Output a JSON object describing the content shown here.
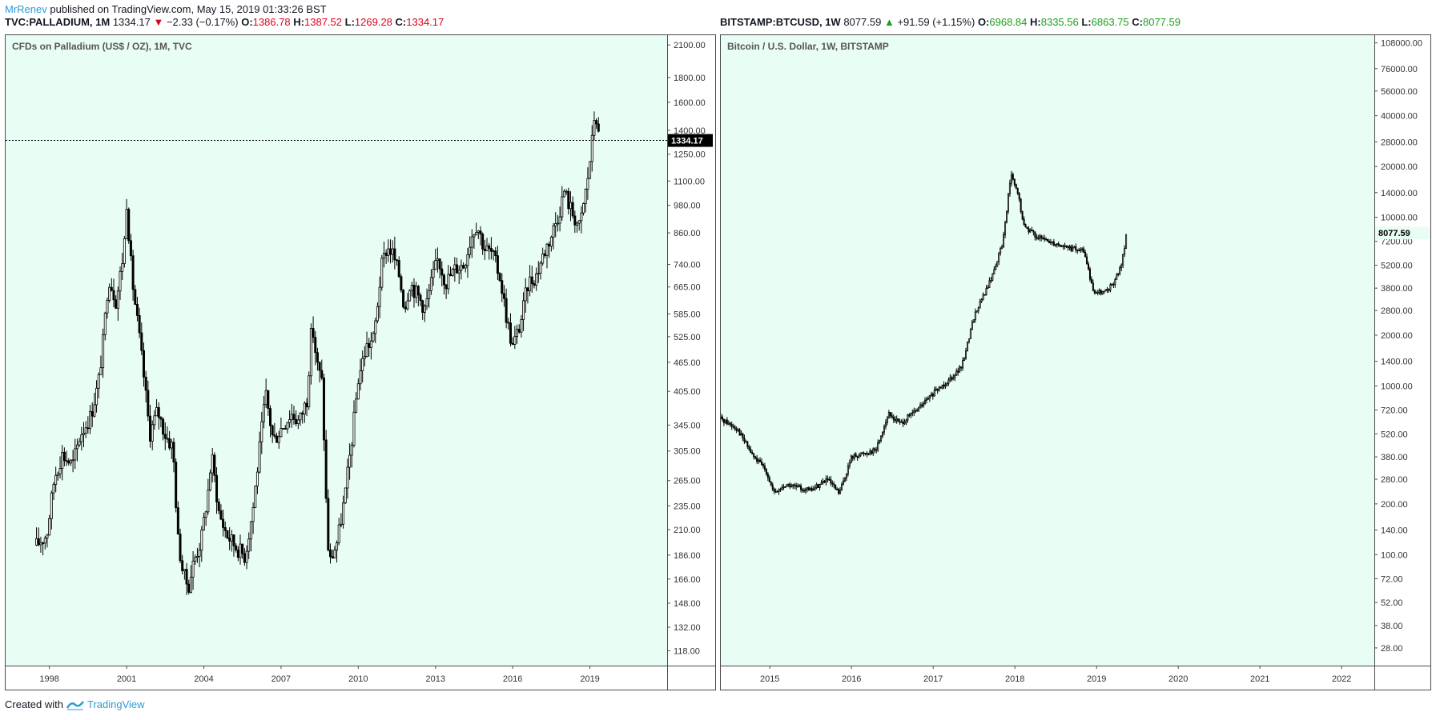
{
  "header": {
    "author": "MrRenev",
    "published": "published on TradingView.com, May 15, 2019 01:33:26 BST"
  },
  "left": {
    "symbol": "TVC:PALLADIUM, 1M",
    "price": "1334.17",
    "change_icon": "triangle-down-icon",
    "change": "−2.33 (−0.17%)",
    "o_label": "O:",
    "o": "1386.78",
    "h_label": "H:",
    "h": "1387.52",
    "l_label": "L:",
    "l": "1269.28",
    "c_label": "C:",
    "c": "1334.17",
    "title": "CFDs on Palladium (US$ / OZ), 1M, TVC",
    "last_price_label": "1334.17"
  },
  "right": {
    "symbol": "BITSTAMP:BTCUSD, 1W",
    "price": "8077.59",
    "change_icon": "triangle-up-icon",
    "change": "+91.59 (+1.15%)",
    "o_label": "O:",
    "o": "6968.84",
    "h_label": "H:",
    "h": "8335.56",
    "l_label": "L:",
    "l": "6863.75",
    "c_label": "C:",
    "c": "8077.59",
    "title": "Bitcoin / U.S. Dollar, 1W, BITSTAMP",
    "last_price_label": "8077.59"
  },
  "footer": {
    "created": "Created with",
    "brand": "TradingView"
  },
  "colors": {
    "plot_bg": "#e8fdf3",
    "candle": "#000000",
    "up_text": "#1aa01a",
    "down_text": "#e0001b",
    "brand": "#2a9bd6"
  },
  "chart_data": [
    {
      "type": "candlestick",
      "title": "CFDs on Palladium (US$ / OZ), 1M, TVC",
      "y_scale": "log",
      "ylim": [
        110,
        2200
      ],
      "xlim": [
        1996.3,
        2022.0
      ],
      "y_ticks": [
        2100,
        1800,
        1600,
        1400,
        1250,
        1100,
        980,
        860,
        740,
        665,
        585,
        525,
        465,
        405,
        345,
        305,
        265,
        235,
        210,
        186,
        166,
        148,
        132,
        118
      ],
      "y_tick_labels": [
        "2100.00",
        "1800.00",
        "1600.00",
        "1400.00",
        "1250.00",
        "1100.00",
        "980.00",
        "860.00",
        "740.00",
        "665.00",
        "585.00",
        "525.00",
        "465.00",
        "405.00",
        "345.00",
        "305.00",
        "265.00",
        "235.00",
        "210.00",
        "186.00",
        "166.00",
        "148.00",
        "132.00",
        "118.00"
      ],
      "x_ticks": [
        1998,
        2001,
        2004,
        2007,
        2010,
        2013,
        2016,
        2019
      ],
      "x_tick_labels": [
        "1998",
        "2001",
        "2004",
        "2007",
        "2010",
        "2013",
        "2016",
        "2019"
      ],
      "last_price": 1334.17,
      "price_path": [
        [
          1997.5,
          195
        ],
        [
          1997.9,
          205
        ],
        [
          1998.2,
          270
        ],
        [
          1998.5,
          300
        ],
        [
          1998.9,
          285
        ],
        [
          1999.2,
          330
        ],
        [
          1999.6,
          360
        ],
        [
          1999.9,
          420
        ],
        [
          2000.1,
          520
        ],
        [
          2000.3,
          700
        ],
        [
          2000.6,
          620
        ],
        [
          2000.9,
          800
        ],
        [
          2001.0,
          1000
        ],
        [
          2001.2,
          700
        ],
        [
          2001.5,
          520
        ],
        [
          2001.7,
          420
        ],
        [
          2001.9,
          330
        ],
        [
          2002.2,
          370
        ],
        [
          2002.5,
          330
        ],
        [
          2002.8,
          310
        ],
        [
          2003.0,
          200
        ],
        [
          2003.2,
          170
        ],
        [
          2003.4,
          160
        ],
        [
          2003.6,
          180
        ],
        [
          2003.9,
          200
        ],
        [
          2004.2,
          260
        ],
        [
          2004.3,
          300
        ],
        [
          2004.6,
          225
        ],
        [
          2004.9,
          205
        ],
        [
          2005.2,
          195
        ],
        [
          2005.6,
          185
        ],
        [
          2005.9,
          230
        ],
        [
          2006.2,
          320
        ],
        [
          2006.4,
          400
        ],
        [
          2006.7,
          320
        ],
        [
          2007.0,
          340
        ],
        [
          2007.4,
          365
        ],
        [
          2007.7,
          350
        ],
        [
          2008.0,
          390
        ],
        [
          2008.2,
          560
        ],
        [
          2008.4,
          460
        ],
        [
          2008.6,
          420
        ],
        [
          2008.8,
          200
        ],
        [
          2008.9,
          180
        ],
        [
          2009.2,
          200
        ],
        [
          2009.5,
          250
        ],
        [
          2009.8,
          340
        ],
        [
          2010.0,
          430
        ],
        [
          2010.3,
          500
        ],
        [
          2010.6,
          520
        ],
        [
          2010.9,
          730
        ],
        [
          2011.1,
          800
        ],
        [
          2011.3,
          790
        ],
        [
          2011.6,
          700
        ],
        [
          2011.8,
          600
        ],
        [
          2012.0,
          680
        ],
        [
          2012.3,
          640
        ],
        [
          2012.6,
          600
        ],
        [
          2012.9,
          700
        ],
        [
          2013.1,
          760
        ],
        [
          2013.4,
          680
        ],
        [
          2013.8,
          730
        ],
        [
          2014.1,
          740
        ],
        [
          2014.4,
          850
        ],
        [
          2014.6,
          900
        ],
        [
          2014.9,
          800
        ],
        [
          2015.2,
          780
        ],
        [
          2015.5,
          700
        ],
        [
          2015.8,
          560
        ],
        [
          2016.0,
          500
        ],
        [
          2016.3,
          560
        ],
        [
          2016.6,
          680
        ],
        [
          2016.9,
          700
        ],
        [
          2017.2,
          780
        ],
        [
          2017.5,
          850
        ],
        [
          2017.8,
          950
        ],
        [
          2018.0,
          1050
        ],
        [
          2018.3,
          950
        ],
        [
          2018.6,
          880
        ],
        [
          2018.9,
          1100
        ],
        [
          2019.1,
          1350
        ],
        [
          2019.2,
          1560
        ],
        [
          2019.35,
          1334
        ]
      ]
    },
    {
      "type": "candlestick",
      "title": "Bitcoin / U.S. Dollar, 1W, BITSTAMP",
      "y_scale": "log",
      "ylim": [
        22,
        120000
      ],
      "xlim": [
        2014.4,
        2022.4
      ],
      "y_ticks": [
        108000,
        76000,
        56000,
        40000,
        28000,
        20000,
        14000,
        10000,
        7200,
        5200,
        3800,
        2800,
        2000,
        1400,
        1000,
        720,
        520,
        380,
        280,
        200,
        140,
        100,
        72,
        52,
        38,
        28
      ],
      "y_tick_labels": [
        "108000.00",
        "76000.00",
        "56000.00",
        "40000.00",
        "28000.00",
        "20000.00",
        "14000.00",
        "10000.00",
        "7200.00",
        "5200.00",
        "3800.00",
        "2800.00",
        "2000.00",
        "1400.00",
        "1000.00",
        "720.00",
        "520.00",
        "380.00",
        "280.00",
        "200.00",
        "140.00",
        "100.00",
        "72.00",
        "52.00",
        "38.00",
        "28.00"
      ],
      "x_ticks": [
        2015,
        2016,
        2017,
        2018,
        2019,
        2020,
        2021,
        2022
      ],
      "x_tick_labels": [
        "2015",
        "2016",
        "2017",
        "2018",
        "2019",
        "2020",
        "2021",
        "2022"
      ],
      "last_price": 8077.59,
      "price_path": [
        [
          2014.4,
          640
        ],
        [
          2014.6,
          560
        ],
        [
          2014.8,
          380
        ],
        [
          2014.95,
          320
        ],
        [
          2015.05,
          230
        ],
        [
          2015.2,
          260
        ],
        [
          2015.5,
          240
        ],
        [
          2015.7,
          280
        ],
        [
          2015.85,
          230
        ],
        [
          2016.0,
          380
        ],
        [
          2016.3,
          420
        ],
        [
          2016.45,
          680
        ],
        [
          2016.6,
          600
        ],
        [
          2016.8,
          720
        ],
        [
          2017.0,
          900
        ],
        [
          2017.2,
          1100
        ],
        [
          2017.35,
          1300
        ],
        [
          2017.5,
          2600
        ],
        [
          2017.7,
          4200
        ],
        [
          2017.85,
          7000
        ],
        [
          2017.95,
          18000
        ],
        [
          2018.05,
          13000
        ],
        [
          2018.1,
          9000
        ],
        [
          2018.3,
          7500
        ],
        [
          2018.5,
          7000
        ],
        [
          2018.7,
          6500
        ],
        [
          2018.85,
          6300
        ],
        [
          2018.95,
          3700
        ],
        [
          2019.1,
          3600
        ],
        [
          2019.2,
          4000
        ],
        [
          2019.3,
          5100
        ],
        [
          2019.37,
          8077
        ]
      ]
    }
  ]
}
